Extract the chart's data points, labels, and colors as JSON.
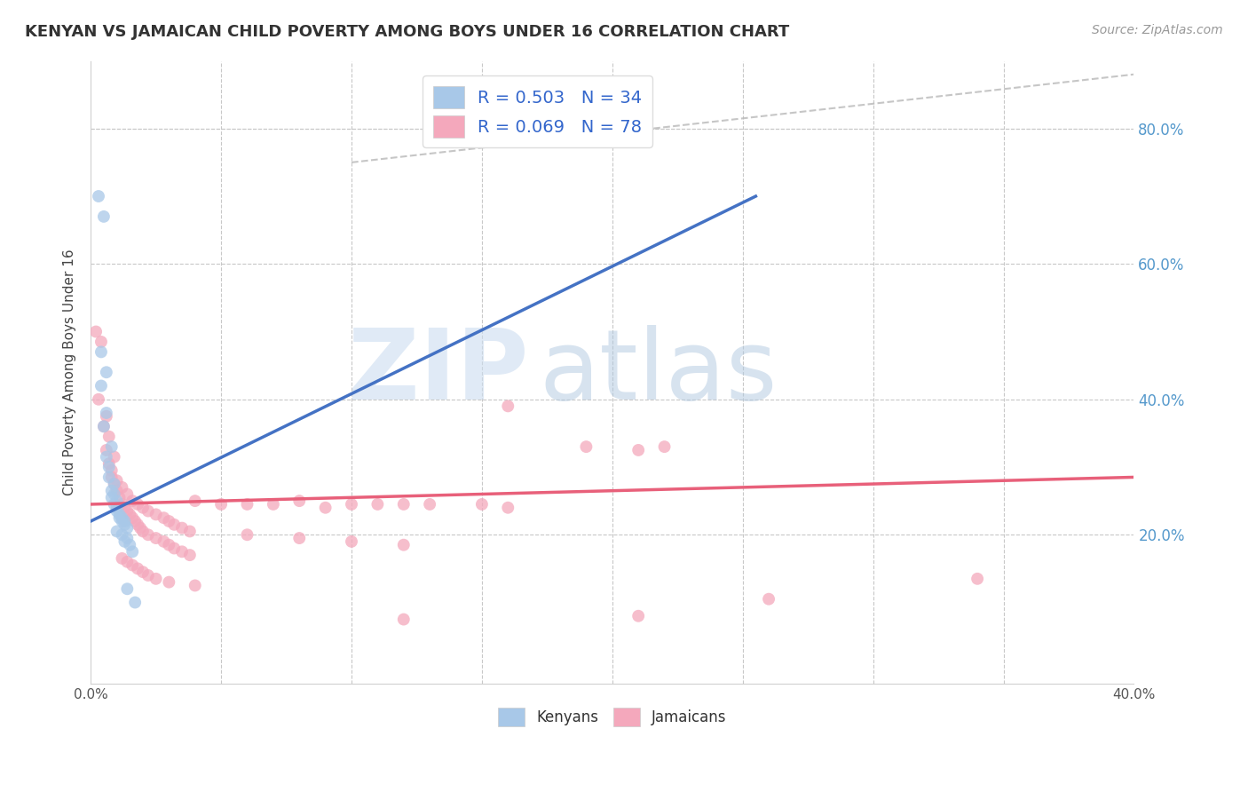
{
  "title": "KENYAN VS JAMAICAN CHILD POVERTY AMONG BOYS UNDER 16 CORRELATION CHART",
  "source": "Source: ZipAtlas.com",
  "ylabel": "Child Poverty Among Boys Under 16",
  "xlim": [
    0.0,
    0.4
  ],
  "ylim": [
    -0.02,
    0.9
  ],
  "right_yticks": [
    0.2,
    0.4,
    0.6,
    0.8
  ],
  "right_yticklabels": [
    "20.0%",
    "40.0%",
    "60.0%",
    "80.0%"
  ],
  "kenyan_color": "#a8c8e8",
  "jamaican_color": "#f4a8bc",
  "kenyan_line_color": "#4472c4",
  "jamaican_line_color": "#e8607a",
  "ref_line_color": "#b8b8b8",
  "watermark_color": "#ccddf0",
  "background_color": "#ffffff",
  "kenyan_line_x0": 0.0,
  "kenyan_line_y0": 0.22,
  "kenyan_line_x1": 0.255,
  "kenyan_line_y1": 0.7,
  "jamaican_line_x0": 0.0,
  "jamaican_line_y0": 0.245,
  "jamaican_line_x1": 0.4,
  "jamaican_line_y1": 0.285,
  "ref_line_x0": 0.1,
  "ref_line_y0": 0.75,
  "ref_line_x1": 0.4,
  "ref_line_y1": 0.88,
  "kenyan_points": [
    [
      0.003,
      0.7
    ],
    [
      0.005,
      0.67
    ],
    [
      0.004,
      0.47
    ],
    [
      0.006,
      0.44
    ],
    [
      0.004,
      0.42
    ],
    [
      0.006,
      0.38
    ],
    [
      0.005,
      0.36
    ],
    [
      0.008,
      0.33
    ],
    [
      0.006,
      0.315
    ],
    [
      0.007,
      0.3
    ],
    [
      0.007,
      0.285
    ],
    [
      0.009,
      0.275
    ],
    [
      0.008,
      0.265
    ],
    [
      0.009,
      0.26
    ],
    [
      0.008,
      0.255
    ],
    [
      0.01,
      0.25
    ],
    [
      0.009,
      0.245
    ],
    [
      0.01,
      0.24
    ],
    [
      0.01,
      0.235
    ],
    [
      0.011,
      0.23
    ],
    [
      0.011,
      0.225
    ],
    [
      0.012,
      0.225
    ],
    [
      0.012,
      0.22
    ],
    [
      0.013,
      0.22
    ],
    [
      0.013,
      0.215
    ],
    [
      0.014,
      0.21
    ],
    [
      0.01,
      0.205
    ],
    [
      0.012,
      0.2
    ],
    [
      0.014,
      0.195
    ],
    [
      0.013,
      0.19
    ],
    [
      0.015,
      0.185
    ],
    [
      0.016,
      0.175
    ],
    [
      0.014,
      0.12
    ],
    [
      0.017,
      0.1
    ]
  ],
  "jamaican_points": [
    [
      0.002,
      0.5
    ],
    [
      0.004,
      0.485
    ],
    [
      0.003,
      0.4
    ],
    [
      0.006,
      0.375
    ],
    [
      0.005,
      0.36
    ],
    [
      0.007,
      0.345
    ],
    [
      0.006,
      0.325
    ],
    [
      0.009,
      0.315
    ],
    [
      0.007,
      0.305
    ],
    [
      0.008,
      0.295
    ],
    [
      0.008,
      0.285
    ],
    [
      0.01,
      0.28
    ],
    [
      0.009,
      0.275
    ],
    [
      0.012,
      0.27
    ],
    [
      0.01,
      0.265
    ],
    [
      0.014,
      0.26
    ],
    [
      0.011,
      0.255
    ],
    [
      0.016,
      0.25
    ],
    [
      0.012,
      0.245
    ],
    [
      0.018,
      0.245
    ],
    [
      0.013,
      0.24
    ],
    [
      0.02,
      0.24
    ],
    [
      0.014,
      0.235
    ],
    [
      0.022,
      0.235
    ],
    [
      0.015,
      0.23
    ],
    [
      0.025,
      0.23
    ],
    [
      0.016,
      0.225
    ],
    [
      0.028,
      0.225
    ],
    [
      0.017,
      0.22
    ],
    [
      0.03,
      0.22
    ],
    [
      0.018,
      0.215
    ],
    [
      0.032,
      0.215
    ],
    [
      0.019,
      0.21
    ],
    [
      0.035,
      0.21
    ],
    [
      0.02,
      0.205
    ],
    [
      0.038,
      0.205
    ],
    [
      0.022,
      0.2
    ],
    [
      0.04,
      0.25
    ],
    [
      0.025,
      0.195
    ],
    [
      0.05,
      0.245
    ],
    [
      0.028,
      0.19
    ],
    [
      0.06,
      0.245
    ],
    [
      0.03,
      0.185
    ],
    [
      0.07,
      0.245
    ],
    [
      0.032,
      0.18
    ],
    [
      0.08,
      0.25
    ],
    [
      0.035,
      0.175
    ],
    [
      0.09,
      0.24
    ],
    [
      0.038,
      0.17
    ],
    [
      0.1,
      0.245
    ],
    [
      0.012,
      0.165
    ],
    [
      0.11,
      0.245
    ],
    [
      0.014,
      0.16
    ],
    [
      0.12,
      0.245
    ],
    [
      0.016,
      0.155
    ],
    [
      0.13,
      0.245
    ],
    [
      0.018,
      0.15
    ],
    [
      0.15,
      0.245
    ],
    [
      0.02,
      0.145
    ],
    [
      0.16,
      0.39
    ],
    [
      0.022,
      0.14
    ],
    [
      0.19,
      0.33
    ],
    [
      0.025,
      0.135
    ],
    [
      0.21,
      0.325
    ],
    [
      0.03,
      0.13
    ],
    [
      0.22,
      0.33
    ],
    [
      0.04,
      0.125
    ],
    [
      0.06,
      0.2
    ],
    [
      0.08,
      0.195
    ],
    [
      0.1,
      0.19
    ],
    [
      0.12,
      0.185
    ],
    [
      0.16,
      0.24
    ],
    [
      0.34,
      0.135
    ],
    [
      0.26,
      0.105
    ],
    [
      0.21,
      0.08
    ],
    [
      0.12,
      0.075
    ]
  ]
}
